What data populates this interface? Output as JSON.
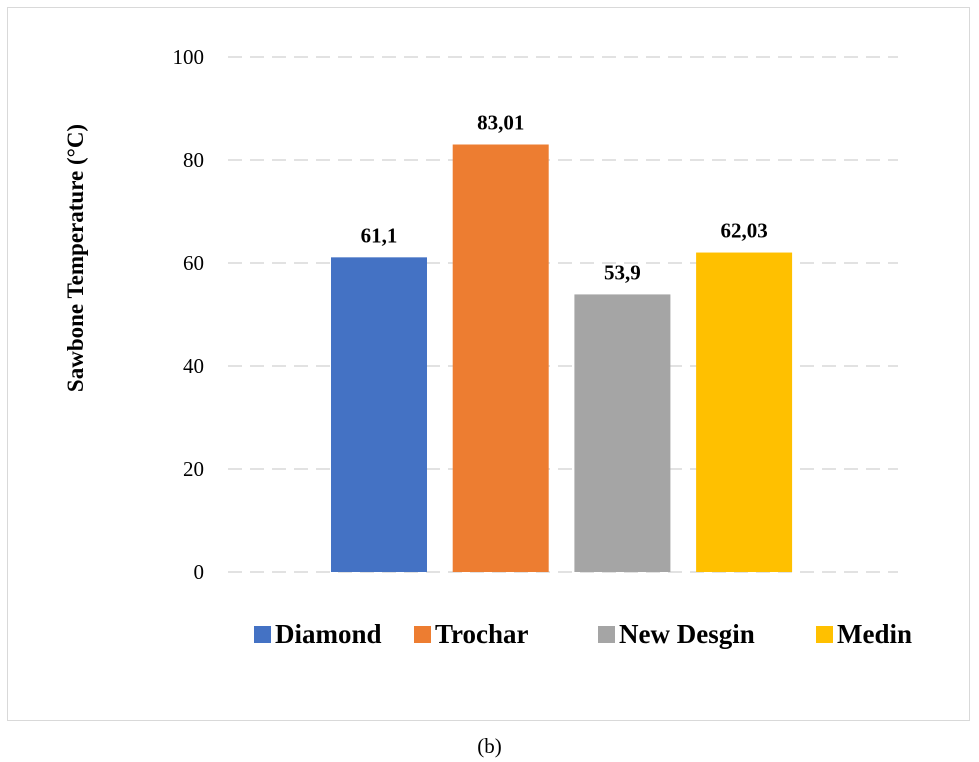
{
  "chart_data": {
    "type": "bar",
    "categories": [
      "Diamond",
      "Trochar",
      "New Desgin",
      "Medin"
    ],
    "values": [
      61.1,
      83.01,
      53.9,
      62.03
    ],
    "data_labels": [
      "61,1",
      "83,01",
      "53,9",
      "62,03"
    ],
    "colors": [
      "#4472c4",
      "#ed7d31",
      "#a5a5a5",
      "#ffc000"
    ],
    "title": "",
    "xlabel": "",
    "ylabel": "Sawbone Temperature (°C)",
    "ylim": [
      0,
      100
    ],
    "yticks": [
      0,
      20,
      40,
      60,
      80,
      100
    ],
    "grid": "dashed horizontal",
    "legend": "bottom"
  },
  "caption": "(b)"
}
